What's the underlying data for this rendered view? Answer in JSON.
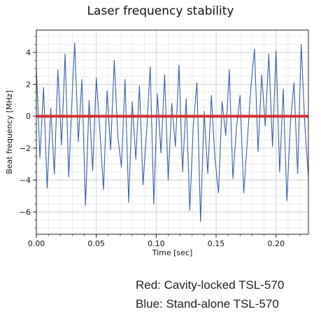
{
  "chart_data": {
    "type": "line",
    "title": "Laser frequency stability",
    "xlabel": "Time [sec]",
    "ylabel": "Beat frequency [MHz]",
    "xlim": [
      0.0,
      0.227
    ],
    "ylim": [
      -7.4,
      5.4
    ],
    "xticks": [
      0.0,
      0.05,
      0.1,
      0.15,
      0.2
    ],
    "xtick_labels": [
      "0.00",
      "0.05",
      "0.10",
      "0.15",
      "0.20"
    ],
    "yticks": [
      -6,
      -4,
      -2,
      0,
      2,
      4
    ],
    "ytick_labels": [
      "−6",
      "−4",
      "−2",
      "0",
      "2",
      "4"
    ],
    "grid": true,
    "series": [
      {
        "color": "#3a5ea8",
        "x": [
          0.0,
          0.003,
          0.006,
          0.009,
          0.012,
          0.015,
          0.018,
          0.021,
          0.024,
          0.027,
          0.03,
          0.032,
          0.035,
          0.038,
          0.041,
          0.044,
          0.047,
          0.05,
          0.053,
          0.056,
          0.059,
          0.062,
          0.065,
          0.068,
          0.071,
          0.074,
          0.077,
          0.08,
          0.083,
          0.086,
          0.089,
          0.092,
          0.095,
          0.098,
          0.101,
          0.104,
          0.107,
          0.11,
          0.113,
          0.116,
          0.119,
          0.122,
          0.125,
          0.128,
          0.131,
          0.134,
          0.137,
          0.14,
          0.143,
          0.146,
          0.149,
          0.152,
          0.155,
          0.158,
          0.161,
          0.164,
          0.167,
          0.17,
          0.173,
          0.176,
          0.179,
          0.182,
          0.185,
          0.188,
          0.191,
          0.194,
          0.197,
          0.2,
          0.203,
          0.206,
          0.209,
          0.212,
          0.215,
          0.218,
          0.221,
          0.224,
          0.227
        ],
        "y": [
          3.0,
          -2.6,
          1.8,
          -4.5,
          0.5,
          -3.6,
          2.9,
          -1.8,
          3.9,
          -3.8,
          1.5,
          4.6,
          -1.6,
          2.3,
          -5.6,
          1.0,
          -3.4,
          2.4,
          -0.9,
          -4.6,
          1.6,
          -2.1,
          3.5,
          -1.3,
          -3.2,
          2.3,
          -5.4,
          0.9,
          -2.7,
          1.9,
          -4.3,
          -0.9,
          3.1,
          -5.5,
          1.4,
          -2.3,
          2.6,
          -4.0,
          0.8,
          -1.9,
          3.2,
          -3.5,
          1.1,
          -5.9,
          -0.5,
          2.1,
          -6.6,
          0.3,
          -3.6,
          1.3,
          -2.6,
          -4.8,
          0.9,
          -1.2,
          2.9,
          -3.9,
          -0.7,
          1.3,
          -4.8,
          -1.6,
          1.8,
          4.2,
          -2.2,
          2.6,
          -0.6,
          3.9,
          -1.9,
          4.1,
          -3.5,
          1.7,
          -5.3,
          -0.4,
          2.1,
          -3.6,
          4.5,
          -0.6,
          -3.8
        ]
      },
      {
        "color": "#d62f2f",
        "x": [
          0.0,
          0.227
        ],
        "y": [
          0.0,
          0.0
        ]
      }
    ]
  },
  "notes": {
    "red": "Red: Cavity-locked TSL-570",
    "blue": "Blue: Stand-alone TSL-570"
  }
}
